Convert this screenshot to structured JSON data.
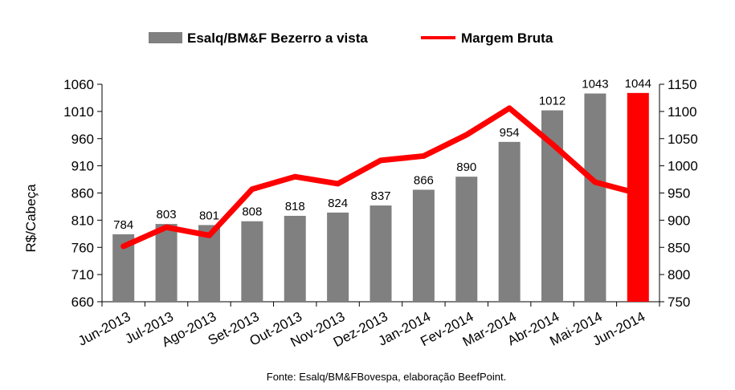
{
  "chart_data": {
    "type": "bar+line",
    "legend": {
      "position": "top-center",
      "bar_series_label": "Esalq/BM&F Bezerro a vista",
      "line_series_label": "Margem Bruta"
    },
    "ylabel_left": "R$/Cabeça",
    "source": "Fonte: Esalq/BM&FBovespa, elaboração BeefPoint.",
    "categories": [
      "Jun-2013",
      "Jul-2013",
      "Ago-2013",
      "Set-2013",
      "Out-2013",
      "Nov-2013",
      "Dez-2013",
      "Jan-2014",
      "Fev-2014",
      "Mar-2014",
      "Abr-2014",
      "Mai-2014",
      "Jun-2014"
    ],
    "y_left": {
      "ylim": [
        660,
        1060
      ],
      "ticks": [
        "660",
        "710",
        "760",
        "810",
        "860",
        "910",
        "960",
        "1010",
        "1060"
      ]
    },
    "y_right": {
      "ylim": [
        750,
        1150
      ],
      "ticks": [
        "750",
        "800",
        "850",
        "900",
        "950",
        "1000",
        "1050",
        "1100",
        "1150"
      ]
    },
    "series": [
      {
        "name": "Esalq/BM&F Bezerro a vista",
        "type": "bar",
        "axis": "left",
        "color": "#808080",
        "highlight_color": "#ff0000",
        "highlight_index": 12,
        "values": [
          784,
          803,
          801,
          808,
          818,
          824,
          837,
          866,
          890,
          954,
          1012,
          1043,
          1044
        ],
        "labels": [
          "784",
          "803",
          "801",
          "808",
          "818",
          "824",
          "837",
          "866",
          "890",
          "954",
          "1012",
          "1043",
          "1044"
        ]
      },
      {
        "name": "Margem Bruta",
        "type": "line",
        "axis": "right",
        "color": "#ff0000",
        "values": [
          852,
          887,
          872,
          957,
          980,
          967,
          1010,
          1018,
          1057,
          1106,
          1040,
          970,
          949
        ]
      }
    ]
  }
}
